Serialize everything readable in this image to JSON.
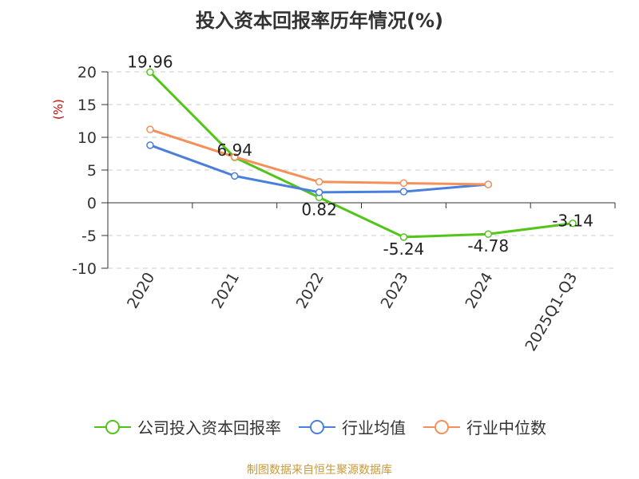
{
  "chart_data": {
    "type": "line",
    "title": "投入资本回报率历年情况(%)",
    "ylabel": "(%)",
    "categories": [
      "2020",
      "2021",
      "2022",
      "2023",
      "2024",
      "2025Q1-Q3"
    ],
    "ylim": [
      -10,
      20
    ],
    "yticks": [
      20,
      15,
      10,
      5,
      0,
      -5,
      -10
    ],
    "grid": true,
    "legend_position": "bottom",
    "series": [
      {
        "name": "公司投入资本回报率",
        "color": "#52c41a",
        "values": [
          19.96,
          6.94,
          0.82,
          -5.24,
          -4.78,
          -3.14
        ],
        "labels": [
          "19.96",
          "6.94",
          "0.82",
          "-5.24",
          "-4.78",
          "-3.14"
        ]
      },
      {
        "name": "行业均值",
        "color": "#4a7fdc",
        "values": [
          8.8,
          4.1,
          1.6,
          1.7,
          2.8,
          null
        ]
      },
      {
        "name": "行业中位数",
        "color": "#f4905a",
        "values": [
          11.2,
          7.0,
          3.2,
          3.0,
          2.8,
          null
        ]
      }
    ]
  },
  "source": "制图数据来自恒生聚源数据库"
}
